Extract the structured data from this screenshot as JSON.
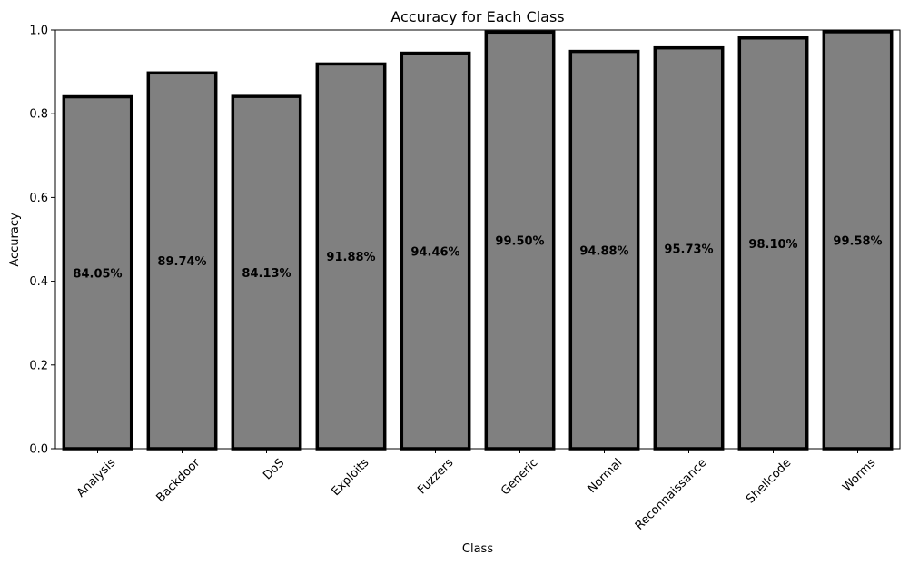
{
  "chart_data": {
    "type": "bar",
    "title": "Accuracy for Each Class",
    "xlabel": "Class",
    "ylabel": "Accuracy",
    "ylim": [
      0,
      1.0
    ],
    "yticks": [
      0.0,
      0.2,
      0.4,
      0.6,
      0.8,
      1.0
    ],
    "ytick_labels": [
      "0.0",
      "0.2",
      "0.4",
      "0.6",
      "0.8",
      "1.0"
    ],
    "categories": [
      "Analysis",
      "Backdoor",
      "DoS",
      "Exploits",
      "Fuzzers",
      "Generic",
      "Normal",
      "Reconnaissance",
      "Shellcode",
      "Worms"
    ],
    "values": [
      0.8405,
      0.8974,
      0.8413,
      0.9188,
      0.9446,
      0.995,
      0.9488,
      0.9573,
      0.981,
      0.9958
    ],
    "data_labels": [
      "84.05%",
      "89.74%",
      "84.13%",
      "91.88%",
      "94.46%",
      "99.50%",
      "94.88%",
      "95.73%",
      "98.10%",
      "99.58%"
    ],
    "bar_color": "#808080",
    "edge_color": "#000000",
    "grid": false,
    "legend": "none"
  }
}
